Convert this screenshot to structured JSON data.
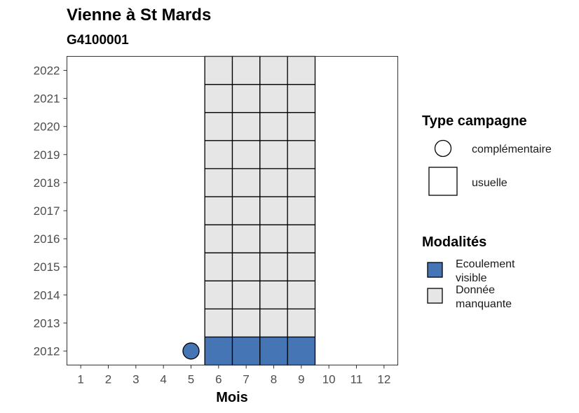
{
  "chart_data": {
    "type": "heatmap",
    "title": "Vienne à St Mards",
    "subtitle": "G4100001",
    "xlabel": "Mois",
    "ylabel": "",
    "x_ticks": [
      "1",
      "2",
      "3",
      "4",
      "5",
      "6",
      "7",
      "8",
      "9",
      "10",
      "11",
      "12"
    ],
    "y_ticks": [
      "2012",
      "2013",
      "2014",
      "2015",
      "2016",
      "2017",
      "2018",
      "2019",
      "2020",
      "2021",
      "2022"
    ],
    "xlim": [
      0.5,
      12.5
    ],
    "ylim": [
      2011.5,
      2022.5
    ],
    "colors": {
      "Ecoulement visible": "#4575b4",
      "Donnée manquante": "#e6e6e6"
    },
    "cells": [
      {
        "year": 2012,
        "month": 5,
        "modalite": "Ecoulement visible",
        "type": "complémentaire"
      },
      {
        "year": 2012,
        "month": 6,
        "modalite": "Ecoulement visible",
        "type": "usuelle"
      },
      {
        "year": 2012,
        "month": 7,
        "modalite": "Ecoulement visible",
        "type": "usuelle"
      },
      {
        "year": 2012,
        "month": 8,
        "modalite": "Ecoulement visible",
        "type": "usuelle"
      },
      {
        "year": 2012,
        "month": 9,
        "modalite": "Ecoulement visible",
        "type": "usuelle"
      },
      {
        "year": 2013,
        "month": 6,
        "modalite": "Donnée manquante",
        "type": "usuelle"
      },
      {
        "year": 2013,
        "month": 7,
        "modalite": "Donnée manquante",
        "type": "usuelle"
      },
      {
        "year": 2013,
        "month": 8,
        "modalite": "Donnée manquante",
        "type": "usuelle"
      },
      {
        "year": 2013,
        "month": 9,
        "modalite": "Donnée manquante",
        "type": "usuelle"
      },
      {
        "year": 2014,
        "month": 6,
        "modalite": "Donnée manquante",
        "type": "usuelle"
      },
      {
        "year": 2014,
        "month": 7,
        "modalite": "Donnée manquante",
        "type": "usuelle"
      },
      {
        "year": 2014,
        "month": 8,
        "modalite": "Donnée manquante",
        "type": "usuelle"
      },
      {
        "year": 2014,
        "month": 9,
        "modalite": "Donnée manquante",
        "type": "usuelle"
      },
      {
        "year": 2015,
        "month": 6,
        "modalite": "Donnée manquante",
        "type": "usuelle"
      },
      {
        "year": 2015,
        "month": 7,
        "modalite": "Donnée manquante",
        "type": "usuelle"
      },
      {
        "year": 2015,
        "month": 8,
        "modalite": "Donnée manquante",
        "type": "usuelle"
      },
      {
        "year": 2015,
        "month": 9,
        "modalite": "Donnée manquante",
        "type": "usuelle"
      },
      {
        "year": 2016,
        "month": 6,
        "modalite": "Donnée manquante",
        "type": "usuelle"
      },
      {
        "year": 2016,
        "month": 7,
        "modalite": "Donnée manquante",
        "type": "usuelle"
      },
      {
        "year": 2016,
        "month": 8,
        "modalite": "Donnée manquante",
        "type": "usuelle"
      },
      {
        "year": 2016,
        "month": 9,
        "modalite": "Donnée manquante",
        "type": "usuelle"
      },
      {
        "year": 2017,
        "month": 6,
        "modalite": "Donnée manquante",
        "type": "usuelle"
      },
      {
        "year": 2017,
        "month": 7,
        "modalite": "Donnée manquante",
        "type": "usuelle"
      },
      {
        "year": 2017,
        "month": 8,
        "modalite": "Donnée manquante",
        "type": "usuelle"
      },
      {
        "year": 2017,
        "month": 9,
        "modalite": "Donnée manquante",
        "type": "usuelle"
      },
      {
        "year": 2018,
        "month": 6,
        "modalite": "Donnée manquante",
        "type": "usuelle"
      },
      {
        "year": 2018,
        "month": 7,
        "modalite": "Donnée manquante",
        "type": "usuelle"
      },
      {
        "year": 2018,
        "month": 8,
        "modalite": "Donnée manquante",
        "type": "usuelle"
      },
      {
        "year": 2018,
        "month": 9,
        "modalite": "Donnée manquante",
        "type": "usuelle"
      },
      {
        "year": 2019,
        "month": 6,
        "modalite": "Donnée manquante",
        "type": "usuelle"
      },
      {
        "year": 2019,
        "month": 7,
        "modalite": "Donnée manquante",
        "type": "usuelle"
      },
      {
        "year": 2019,
        "month": 8,
        "modalite": "Donnée manquante",
        "type": "usuelle"
      },
      {
        "year": 2019,
        "month": 9,
        "modalite": "Donnée manquante",
        "type": "usuelle"
      },
      {
        "year": 2020,
        "month": 6,
        "modalite": "Donnée manquante",
        "type": "usuelle"
      },
      {
        "year": 2020,
        "month": 7,
        "modalite": "Donnée manquante",
        "type": "usuelle"
      },
      {
        "year": 2020,
        "month": 8,
        "modalite": "Donnée manquante",
        "type": "usuelle"
      },
      {
        "year": 2020,
        "month": 9,
        "modalite": "Donnée manquante",
        "type": "usuelle"
      },
      {
        "year": 2021,
        "month": 6,
        "modalite": "Donnée manquante",
        "type": "usuelle"
      },
      {
        "year": 2021,
        "month": 7,
        "modalite": "Donnée manquante",
        "type": "usuelle"
      },
      {
        "year": 2021,
        "month": 8,
        "modalite": "Donnée manquante",
        "type": "usuelle"
      },
      {
        "year": 2021,
        "month": 9,
        "modalite": "Donnée manquante",
        "type": "usuelle"
      },
      {
        "year": 2022,
        "month": 6,
        "modalite": "Donnée manquante",
        "type": "usuelle"
      },
      {
        "year": 2022,
        "month": 7,
        "modalite": "Donnée manquante",
        "type": "usuelle"
      },
      {
        "year": 2022,
        "month": 8,
        "modalite": "Donnée manquante",
        "type": "usuelle"
      },
      {
        "year": 2022,
        "month": 9,
        "modalite": "Donnée manquante",
        "type": "usuelle"
      }
    ],
    "legend_type": {
      "title": "Type campagne",
      "items": [
        {
          "label": "complémentaire",
          "shape": "circle"
        },
        {
          "label": "usuelle",
          "shape": "square"
        }
      ]
    },
    "legend_modalites": {
      "title": "Modalités",
      "items": [
        {
          "label_lines": [
            "Ecoulement",
            "visible"
          ],
          "key": "Ecoulement visible"
        },
        {
          "label_lines": [
            "Donnée",
            "manquante"
          ],
          "key": "Donnée manquante"
        }
      ]
    },
    "grid": false,
    "legend_position": "right"
  }
}
